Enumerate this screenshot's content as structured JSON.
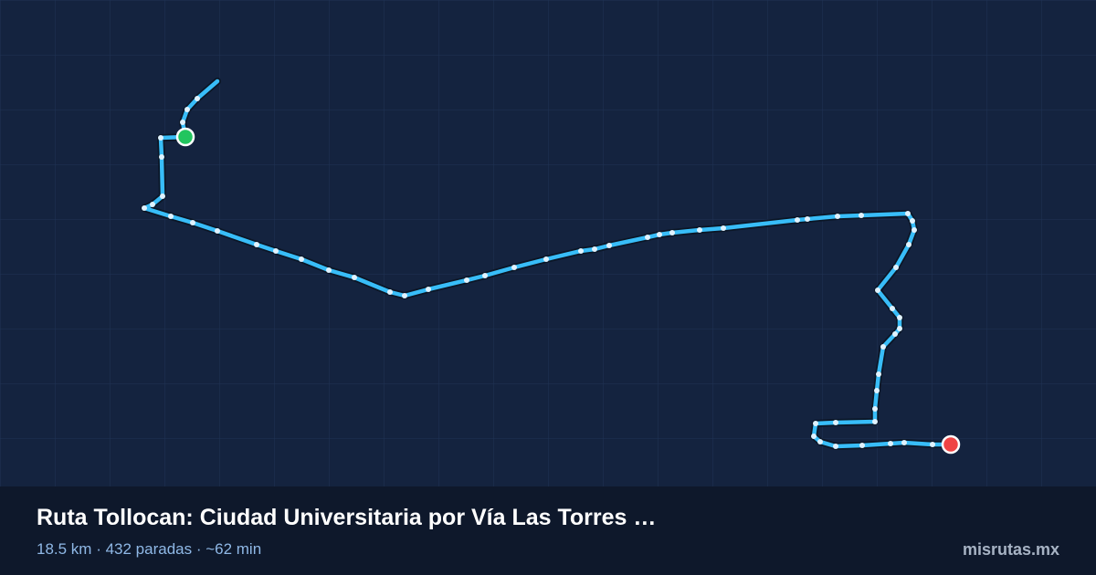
{
  "route": {
    "title": "Ruta Tollocan: Ciudad Universitaria por Vía Las Torres …",
    "summary": "18.5 km · 432 paradas · ~62 min"
  },
  "brand": "misrutas.mx"
}
